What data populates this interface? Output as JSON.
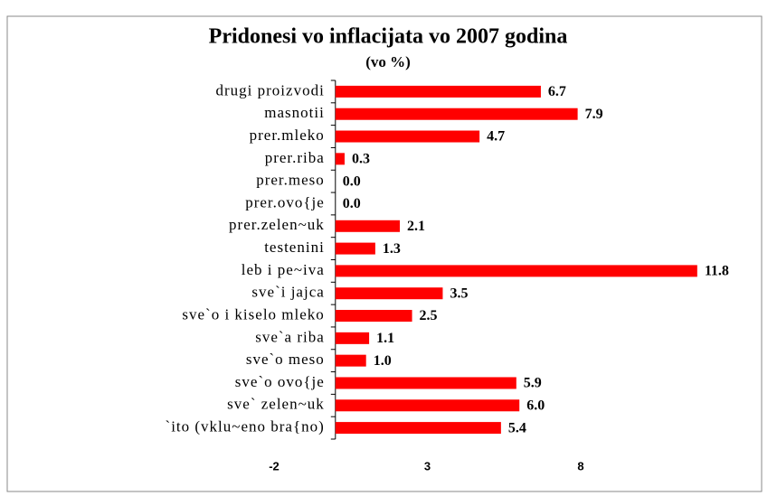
{
  "chart_data": {
    "type": "bar",
    "orientation": "horizontal",
    "title": "Pridonesi vo inflacijata vo 2007 godina",
    "subtitle": "(vo %)",
    "categories": [
      "drugi proizvodi",
      "masnotii",
      "prer.mleko",
      "prer.riba",
      "prer.meso",
      "prer.ovo{je",
      "prer.zelen~uk",
      "testenini",
      "leb i pe~iva",
      "sve`i jajca",
      "sve`o i kiselo mleko",
      "sve`a riba",
      "sve`o meso",
      "sve`o ovo{je",
      "sve` zelen~uk",
      "`ito (vklu~eno bra{no)"
    ],
    "values": [
      6.7,
      7.9,
      4.7,
      0.3,
      0.0,
      0.0,
      2.1,
      1.3,
      11.8,
      3.5,
      2.5,
      1.1,
      1.0,
      5.9,
      6.0,
      5.4
    ],
    "value_labels": [
      "6.7",
      "7.9",
      "4.7",
      "0.3",
      "0.0",
      "0.0",
      "2.1",
      "1.3",
      "11.8",
      "3.5",
      "2.5",
      "1.1",
      "1.0",
      "5.9",
      "6.0",
      "5.4"
    ],
    "color": "#ff0000",
    "xlim": [
      -2,
      13
    ],
    "xticks": [
      -2,
      3,
      8
    ],
    "grid": false
  }
}
